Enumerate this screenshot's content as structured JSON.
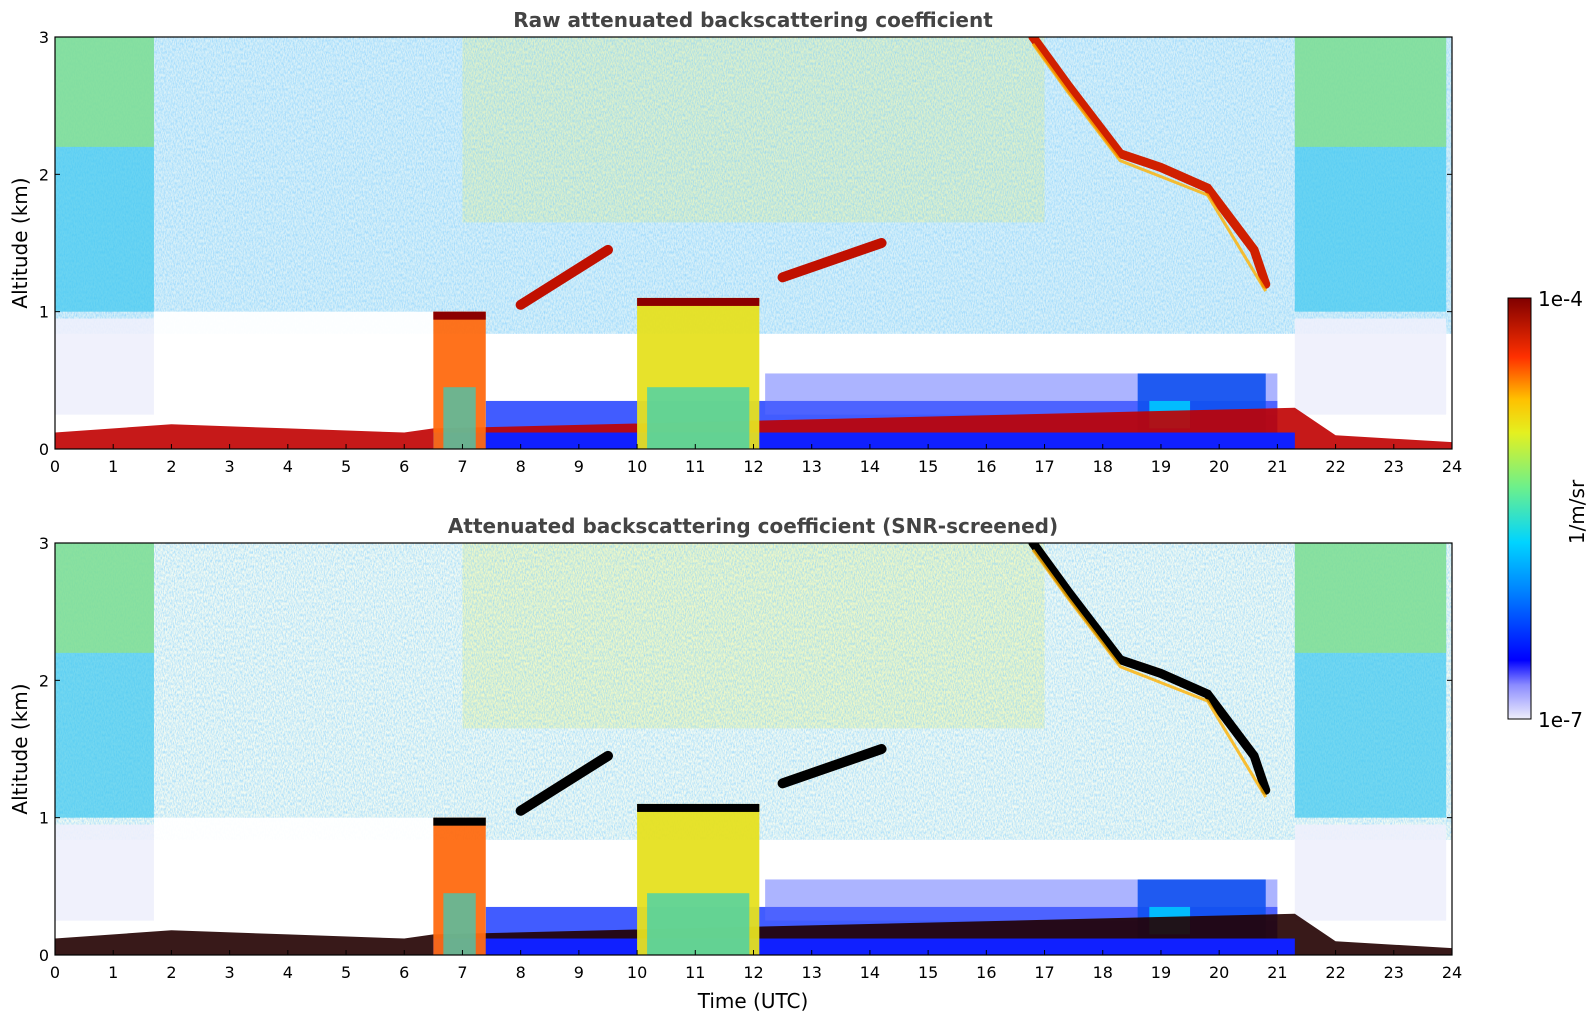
{
  "chart_data": [
    {
      "type": "heatmap",
      "title": "Raw attenuated backscattering coefficient",
      "xlabel": "",
      "ylabel": "Altitude (km)",
      "xlim": [
        0,
        24
      ],
      "ylim": [
        0,
        3
      ],
      "xticks": [
        "0",
        "1",
        "2",
        "3",
        "4",
        "5",
        "6",
        "7",
        "8",
        "9",
        "10",
        "11",
        "12",
        "13",
        "14",
        "15",
        "16",
        "17",
        "18",
        "19",
        "20",
        "21",
        "22",
        "23",
        "24"
      ],
      "yticks": [
        "0",
        "1",
        "2",
        "3"
      ],
      "boundary_layer_km": [
        [
          0,
          0.12
        ],
        [
          2,
          0.18
        ],
        [
          4,
          0.15
        ],
        [
          6,
          0.12
        ],
        [
          6.5,
          0.15
        ],
        [
          21.3,
          0.3
        ],
        [
          22,
          0.1
        ],
        [
          24,
          0.05
        ]
      ],
      "cloud_layers": [
        {
          "x_start": 6.5,
          "x_end": 7.4,
          "y_bottom": 0.0,
          "y_top": 1.0
        },
        {
          "x_start": 10.0,
          "x_end": 12.1,
          "y_bottom": 0.0,
          "y_top": 1.1
        },
        {
          "x_start": 8.0,
          "x_end": 9.5,
          "y_bottom": 1.05,
          "y_top": 1.45
        },
        {
          "x_start": 12.5,
          "x_end": 14.2,
          "y_bottom": 1.25,
          "y_top": 1.5
        },
        {
          "x_start": 16.8,
          "x_end": 20.8,
          "y_bottom": 1.2,
          "y_top": 3.0
        }
      ]
    },
    {
      "type": "heatmap",
      "title": "Attenuated backscattering coefficient (SNR-screened)",
      "xlabel": "Time (UTC)",
      "ylabel": "Altitude (km)",
      "xlim": [
        0,
        24
      ],
      "ylim": [
        0,
        3
      ],
      "xticks": [
        "0",
        "1",
        "2",
        "3",
        "4",
        "5",
        "6",
        "7",
        "8",
        "9",
        "10",
        "11",
        "12",
        "13",
        "14",
        "15",
        "16",
        "17",
        "18",
        "19",
        "20",
        "21",
        "22",
        "23",
        "24"
      ],
      "yticks": [
        "0",
        "1",
        "2",
        "3"
      ]
    }
  ],
  "colorbar": {
    "label": "1/m/sr",
    "max_label": "1e-4",
    "min_label": "1e-7",
    "range": [
      1e-07,
      0.0001
    ],
    "scale": "log",
    "colors": [
      "#e8e8f8",
      "#0000ff",
      "#00c8ff",
      "#8cff6e",
      "#ffd700",
      "#ff4000",
      "#8b0000"
    ]
  }
}
